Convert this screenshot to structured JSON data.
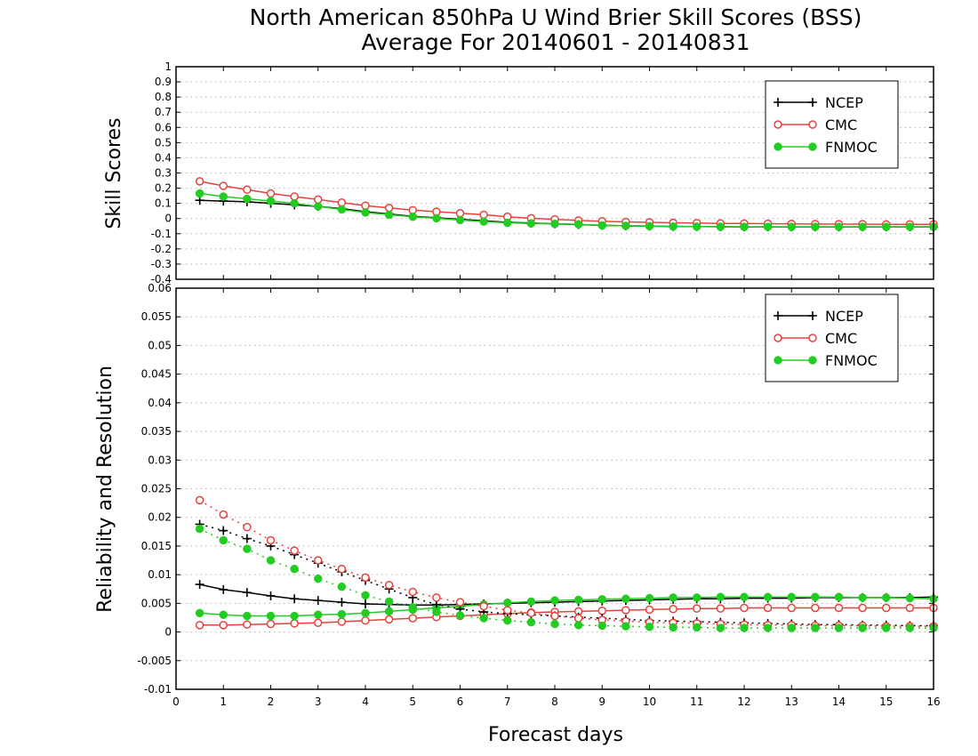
{
  "figure": {
    "title_line1": "North American 850hPa U Wind Brier Skill Scores (BSS)",
    "title_line2": "Average For 20140601 - 20140831",
    "xlabel": "Forecast days"
  },
  "colors": {
    "NCEP": "#000000",
    "CMC": "#e8413c",
    "FNMOC": "#22cc22"
  },
  "chart_data": [
    {
      "type": "line",
      "name": "bss",
      "ylabel": "Skill Scores",
      "xlim": [
        0,
        16
      ],
      "ylim": [
        -0.4,
        1.0
      ],
      "xticks": [
        "0",
        "1",
        "2",
        "3",
        "4",
        "5",
        "6",
        "7",
        "8",
        "9",
        "10",
        "11",
        "12",
        "13",
        "14",
        "15",
        "16"
      ],
      "yticks": [
        "-0.4",
        "-0.3",
        "-0.2",
        "-0.1",
        "0",
        "0.1",
        "0.2",
        "0.3",
        "0.4",
        "0.5",
        "0.6",
        "0.7",
        "0.8",
        "0.9",
        "1"
      ],
      "grid": "horizontal dotted",
      "legend_position": "top-right",
      "legend": [
        "NCEP",
        "CMC",
        "FNMOC"
      ],
      "x": [
        0.5,
        1,
        1.5,
        2,
        2.5,
        3,
        3.5,
        4,
        4.5,
        5,
        5.5,
        6,
        6.5,
        7,
        7.5,
        8,
        8.5,
        9,
        9.5,
        10,
        10.5,
        11,
        11.5,
        12,
        12.5,
        13,
        13.5,
        14,
        14.5,
        15,
        15.5,
        16
      ],
      "series": [
        {
          "name": "NCEP",
          "style": "solid",
          "marker": "plus",
          "values": [
            0.12,
            0.115,
            0.11,
            0.1,
            0.09,
            0.08,
            0.065,
            0.045,
            0.03,
            0.015,
            0.005,
            -0.005,
            -0.015,
            -0.025,
            -0.03,
            -0.035,
            -0.04,
            -0.045,
            -0.048,
            -0.05,
            -0.052,
            -0.053,
            -0.054,
            -0.055,
            -0.055,
            -0.055,
            -0.055,
            -0.055,
            -0.055,
            -0.055,
            -0.055,
            -0.055
          ]
        },
        {
          "name": "CMC",
          "style": "solid",
          "marker": "open-circle",
          "values": [
            0.245,
            0.215,
            0.19,
            0.165,
            0.145,
            0.125,
            0.105,
            0.085,
            0.07,
            0.055,
            0.045,
            0.035,
            0.025,
            0.012,
            0.002,
            -0.005,
            -0.013,
            -0.018,
            -0.022,
            -0.025,
            -0.028,
            -0.03,
            -0.032,
            -0.033,
            -0.034,
            -0.035,
            -0.036,
            -0.037,
            -0.037,
            -0.038,
            -0.038,
            -0.038
          ]
        },
        {
          "name": "FNMOC",
          "style": "solid",
          "marker": "filled-circle",
          "values": [
            0.165,
            0.145,
            0.13,
            0.115,
            0.1,
            0.08,
            0.06,
            0.04,
            0.025,
            0.012,
            0.002,
            -0.01,
            -0.02,
            -0.028,
            -0.032,
            -0.035,
            -0.038,
            -0.045,
            -0.048,
            -0.05,
            -0.052,
            -0.053,
            -0.054,
            -0.055,
            -0.055,
            -0.055,
            -0.055,
            -0.055,
            -0.055,
            -0.055,
            -0.055,
            -0.055
          ]
        }
      ]
    },
    {
      "type": "line",
      "name": "reliability-resolution",
      "ylabel": "Reliability and Resolution",
      "xlim": [
        0,
        16
      ],
      "ylim": [
        -0.01,
        0.06
      ],
      "xticks": [
        "0",
        "1",
        "2",
        "3",
        "4",
        "5",
        "6",
        "7",
        "8",
        "9",
        "10",
        "11",
        "12",
        "13",
        "14",
        "15",
        "16"
      ],
      "yticks": [
        "-0.01",
        "-0.005",
        "0",
        "0.005",
        "0.01",
        "0.015",
        "0.02",
        "0.025",
        "0.03",
        "0.035",
        "0.04",
        "0.045",
        "0.05",
        "0.055",
        "0.06"
      ],
      "grid": "horizontal dotted",
      "legend_position": "top-right",
      "legend": [
        "NCEP",
        "CMC",
        "FNMOC"
      ],
      "x": [
        0.5,
        1,
        1.5,
        2,
        2.5,
        3,
        3.5,
        4,
        4.5,
        5,
        5.5,
        6,
        6.5,
        7,
        7.5,
        8,
        8.5,
        9,
        9.5,
        10,
        10.5,
        11,
        11.5,
        12,
        12.5,
        13,
        13.5,
        14,
        14.5,
        15,
        15.5,
        16
      ],
      "series": [
        {
          "name": "NCEP",
          "style": "solid",
          "marker": "plus",
          "values": [
            0.0083,
            0.0074,
            0.0069,
            0.0063,
            0.0058,
            0.0055,
            0.0052,
            0.0049,
            0.0048,
            0.0047,
            0.0047,
            0.0048,
            0.0049,
            0.005,
            0.0051,
            0.0052,
            0.0053,
            0.0054,
            0.0055,
            0.0056,
            0.0057,
            0.0058,
            0.0058,
            0.0059,
            0.0059,
            0.0059,
            0.006,
            0.006,
            0.006,
            0.006,
            0.006,
            0.0061
          ]
        },
        {
          "name": "CMC",
          "style": "solid",
          "marker": "open-circle",
          "values": [
            0.0012,
            0.0012,
            0.0013,
            0.0014,
            0.0015,
            0.0016,
            0.0018,
            0.002,
            0.0022,
            0.0024,
            0.0026,
            0.0028,
            0.003,
            0.0032,
            0.0034,
            0.0035,
            0.0036,
            0.0037,
            0.0038,
            0.0039,
            0.004,
            0.0041,
            0.0041,
            0.0042,
            0.0042,
            0.0042,
            0.0042,
            0.0042,
            0.0042,
            0.0042,
            0.0042,
            0.0042
          ]
        },
        {
          "name": "FNMOC",
          "style": "solid",
          "marker": "filled-circle",
          "values": [
            0.0033,
            0.003,
            0.0028,
            0.0028,
            0.0028,
            0.003,
            0.0031,
            0.0033,
            0.0036,
            0.0039,
            0.0042,
            0.0045,
            0.0048,
            0.0051,
            0.0053,
            0.0055,
            0.0056,
            0.0057,
            0.0058,
            0.0059,
            0.006,
            0.006,
            0.0061,
            0.0061,
            0.0061,
            0.0061,
            0.0061,
            0.0061,
            0.006,
            0.006,
            0.0059,
            0.0058
          ]
        },
        {
          "name": "NCEP",
          "style": "dotted",
          "marker": "plus",
          "values": [
            0.0188,
            0.0177,
            0.0163,
            0.015,
            0.0135,
            0.012,
            0.0105,
            0.009,
            0.0075,
            0.006,
            0.0048,
            0.004,
            0.0035,
            0.0032,
            0.003,
            0.0028,
            0.0026,
            0.0024,
            0.0022,
            0.002,
            0.0019,
            0.0018,
            0.0017,
            0.0016,
            0.0015,
            0.0014,
            0.0013,
            0.0013,
            0.0012,
            0.0012,
            0.0011,
            0.0011
          ]
        },
        {
          "name": "CMC",
          "style": "dotted",
          "marker": "open-circle",
          "values": [
            0.023,
            0.0205,
            0.0183,
            0.016,
            0.0142,
            0.0125,
            0.011,
            0.0095,
            0.0082,
            0.007,
            0.006,
            0.0052,
            0.0045,
            0.0038,
            0.0033,
            0.0028,
            0.0024,
            0.0021,
            0.0019,
            0.0017,
            0.0016,
            0.0015,
            0.0014,
            0.0013,
            0.0012,
            0.0012,
            0.0011,
            0.0011,
            0.0011,
            0.001,
            0.001,
            0.001
          ]
        },
        {
          "name": "FNMOC",
          "style": "dotted",
          "marker": "filled-circle",
          "values": [
            0.018,
            0.016,
            0.0145,
            0.0125,
            0.011,
            0.0093,
            0.0079,
            0.0064,
            0.0053,
            0.0043,
            0.0035,
            0.0029,
            0.0024,
            0.002,
            0.0017,
            0.0014,
            0.0012,
            0.0011,
            0.001,
            0.0009,
            0.0008,
            0.0008,
            0.0007,
            0.0007,
            0.0007,
            0.0007,
            0.0007,
            0.0007,
            0.0007,
            0.0007,
            0.0007,
            0.0007
          ]
        }
      ]
    }
  ]
}
